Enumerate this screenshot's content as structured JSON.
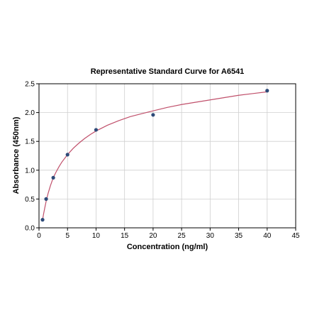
{
  "chart_data": {
    "type": "scatter",
    "title": "Representative Standard Curve for A6541",
    "xlabel": "Concentration (ng/ml)",
    "ylabel": "Absorbance (450nm)",
    "xlim": [
      0,
      45
    ],
    "ylim": [
      0,
      2.5
    ],
    "xticks": [
      0,
      5,
      10,
      15,
      20,
      25,
      30,
      35,
      40,
      45
    ],
    "yticks": [
      0.0,
      0.5,
      1.0,
      1.5,
      2.0,
      2.5
    ],
    "xtick_labels": [
      "0",
      "5",
      "10",
      "15",
      "20",
      "25",
      "30",
      "35",
      "40",
      "45"
    ],
    "ytick_labels": [
      "0.0",
      "0.5",
      "1.0",
      "1.5",
      "2.0",
      "2.5"
    ],
    "grid": true,
    "series": [
      {
        "type": "scatter",
        "x": [
          0.625,
          1.25,
          2.5,
          5,
          10,
          20,
          40
        ],
        "y": [
          0.14,
          0.5,
          0.87,
          1.27,
          1.7,
          1.96,
          2.38
        ]
      },
      {
        "type": "line",
        "x": [
          0.625,
          0.8,
          1.0,
          1.25,
          1.6,
          2.0,
          2.5,
          3.0,
          3.5,
          4.0,
          5.0,
          6.0,
          7.0,
          8.0,
          9.0,
          10.0,
          12.0,
          14.0,
          16.0,
          18.0,
          20.0,
          22.5,
          25.0,
          27.5,
          30.0,
          32.5,
          35.0,
          37.5,
          40.0
        ],
        "y": [
          0.14,
          0.24,
          0.34,
          0.46,
          0.6,
          0.73,
          0.87,
          0.97,
          1.06,
          1.14,
          1.27,
          1.38,
          1.47,
          1.55,
          1.62,
          1.68,
          1.78,
          1.86,
          1.93,
          1.98,
          2.03,
          2.09,
          2.14,
          2.18,
          2.22,
          2.26,
          2.3,
          2.33,
          2.36
        ]
      }
    ],
    "colors": {
      "point": "#2d4a78",
      "curve": "#c0506b",
      "grid": "#cfcfcf",
      "axis": "#000000"
    }
  }
}
